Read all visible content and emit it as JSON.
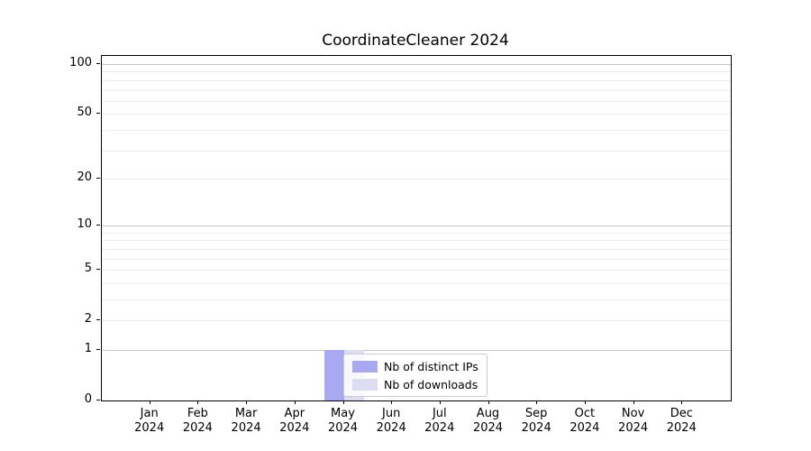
{
  "chart_data": {
    "type": "bar",
    "title": "CoordinateCleaner 2024",
    "x_tick_months": [
      "Jan",
      "Feb",
      "Mar",
      "Apr",
      "May",
      "Jun",
      "Jul",
      "Aug",
      "Sep",
      "Oct",
      "Nov",
      "Dec"
    ],
    "x_tick_year": "2024",
    "y_scale": "log1p",
    "ylim": [
      0,
      100
    ],
    "y_tick_values": [
      0,
      1,
      2,
      5,
      10,
      20,
      50,
      100
    ],
    "y_major_gridlines": [
      1,
      10,
      100
    ],
    "y_minor_gridlines": [
      2,
      3,
      4,
      5,
      6,
      7,
      8,
      9,
      20,
      30,
      40,
      50,
      60,
      70,
      80,
      90
    ],
    "series": [
      {
        "name": "Nb of distinct IPs",
        "color": "#a9a9f2",
        "values": [
          0,
          0,
          0,
          0,
          1,
          0,
          0,
          0,
          0,
          0,
          0,
          0
        ]
      },
      {
        "name": "Nb of downloads",
        "color": "#dcdcf5",
        "values": [
          0,
          0,
          0,
          0,
          1,
          0,
          0,
          0,
          0,
          0,
          0,
          0
        ]
      }
    ],
    "legend_position": "bottom-center-of-plot",
    "grid": true
  },
  "colors": {
    "background": "#ffffff",
    "spine": "#000000",
    "major_grid": "#c6c6c6",
    "minor_grid": "#ebebeb",
    "legend_border": "#cccccc",
    "text": "#000000"
  }
}
